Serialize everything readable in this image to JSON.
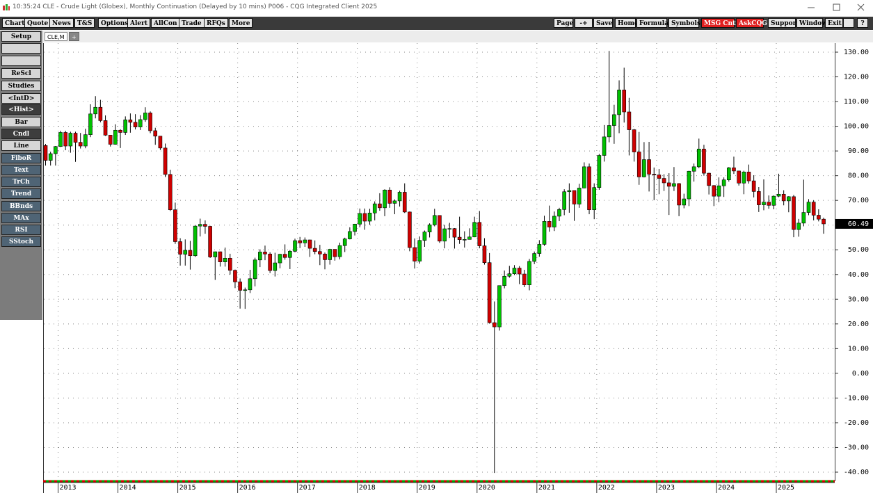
{
  "window": {
    "title": "10:35:24  CLE - Crude Light (Globex), Monthly Continuation (Delayed by 10 mins)  P006 - CQG Integrated Client 2025"
  },
  "toolbar": {
    "left": [
      "Chart",
      "Quote",
      "News",
      "T&S",
      "Options",
      "Alert",
      "AllCon",
      "Trade",
      "RFQs",
      "More"
    ],
    "right": [
      "Page",
      "-+",
      "Save",
      "Home",
      "Formula",
      "Symbols",
      "MSG Cntr",
      "AskCQG",
      "Support",
      "Window",
      "Exit",
      "?"
    ]
  },
  "sidebar": {
    "buttons": [
      "Setup",
      "ReScl",
      "Studies",
      "<IntD>",
      "<Hist>",
      "Bar",
      "Cndl",
      "Line",
      "FiboR",
      "Text",
      "TrCh",
      "Trend",
      "BBnds",
      "MAx",
      "RSI",
      "SStoch"
    ]
  },
  "tab": {
    "label": "CLE,M"
  },
  "chart_data": {
    "type": "candlestick",
    "up_color": "#00c000",
    "down_color": "#d00000",
    "grid": true,
    "ylim": [
      -42.5,
      133.5
    ],
    "yticks": [
      {
        "value": 130,
        "label": "130.00"
      },
      {
        "value": 120,
        "label": "120.00"
      },
      {
        "value": 110,
        "label": "110.00"
      },
      {
        "value": 100,
        "label": "100.00"
      },
      {
        "value": 90,
        "label": "90.00"
      },
      {
        "value": 80,
        "label": "80.00"
      },
      {
        "value": 70,
        "label": "70.00"
      },
      {
        "value": 60,
        "label": "60.00"
      },
      {
        "value": 50,
        "label": "50.00"
      },
      {
        "value": 40,
        "label": "40.00"
      },
      {
        "value": 30,
        "label": "30.00"
      },
      {
        "value": 20,
        "label": "20.00"
      },
      {
        "value": 10,
        "label": "10.00"
      },
      {
        "value": 0,
        "label": "0.00"
      },
      {
        "value": -10,
        "label": "-10.00"
      },
      {
        "value": -20,
        "label": "-20.00"
      },
      {
        "value": -30,
        "label": "-30.00"
      },
      {
        "value": -40,
        "label": "-40.00"
      }
    ],
    "categories": [
      null,
      null,
      null,
      "2013",
      null,
      null,
      null,
      null,
      null,
      null,
      null,
      null,
      null,
      null,
      null,
      "2014",
      null,
      null,
      null,
      null,
      null,
      null,
      null,
      null,
      null,
      null,
      null,
      "2015",
      null,
      null,
      null,
      null,
      null,
      null,
      null,
      null,
      null,
      null,
      null,
      "2016",
      null,
      null,
      null,
      null,
      null,
      null,
      null,
      null,
      null,
      null,
      null,
      "2017",
      null,
      null,
      null,
      null,
      null,
      null,
      null,
      null,
      null,
      null,
      null,
      "2018",
      null,
      null,
      null,
      null,
      null,
      null,
      null,
      null,
      null,
      null,
      null,
      "2019",
      null,
      null,
      null,
      null,
      null,
      null,
      null,
      null,
      null,
      null,
      null,
      "2020",
      null,
      null,
      null,
      null,
      null,
      null,
      null,
      null,
      null,
      null,
      null,
      "2021",
      null,
      null,
      null,
      null,
      null,
      null,
      null,
      null,
      null,
      null,
      null,
      "2022",
      null,
      null,
      null,
      null,
      null,
      null,
      null,
      null,
      null,
      null,
      null,
      "2023",
      null,
      null,
      null,
      null,
      null,
      null,
      null,
      null,
      null,
      null,
      null,
      "2024",
      null,
      null,
      null,
      null,
      null,
      null,
      null,
      null,
      null,
      null,
      null,
      "2025",
      null,
      null,
      null,
      null,
      null,
      null,
      null,
      null,
      null
    ],
    "open": [
      92.2,
      86.2,
      88.9,
      91.8,
      97.5,
      92.0,
      97.2,
      93.5,
      92.0,
      96.6,
      105.0,
      107.7,
      102.3,
      96.4,
      92.7,
      98.4,
      97.5,
      102.6,
      101.6,
      99.7,
      102.7,
      105.4,
      98.2,
      96.0,
      91.2,
      80.5,
      66.2,
      53.3,
      48.2,
      49.8,
      47.6,
      59.6,
      60.3,
      59.5,
      47.1,
      49.2,
      45.1,
      46.6,
      41.7,
      37.0,
      33.6,
      33.8,
      38.3,
      45.9,
      49.1,
      48.3,
      41.6,
      44.7,
      48.2,
      46.9,
      49.4,
      53.7,
      52.8,
      54.0,
      50.6,
      49.3,
      48.3,
      46.0,
      50.2,
      47.2,
      51.7,
      54.4,
      57.4,
      60.4,
      64.7,
      61.6,
      64.9,
      68.6,
      67.0,
      74.2,
      68.8,
      69.8,
      73.3,
      65.3,
      50.9,
      45.4,
      53.8,
      57.2,
      60.1,
      63.9,
      53.5,
      58.5,
      58.6,
      55.1,
      54.1,
      54.2,
      55.2,
      61.1,
      51.6,
      44.8,
      20.5,
      18.8,
      35.5,
      39.3,
      40.3,
      42.6,
      40.2,
      35.8,
      45.3,
      48.5,
      52.2,
      61.5,
      59.2,
      63.6,
      66.3,
      73.5,
      74.0,
      68.5,
      75.0,
      83.6,
      66.2,
      75.2,
      88.2,
      95.7,
      100.3,
      104.7,
      114.7,
      105.8,
      98.6,
      89.6,
      79.5,
      86.5,
      80.6,
      80.3,
      78.9,
      77.1,
      75.7,
      76.8,
      68.1,
      70.6,
      81.8,
      83.6,
      90.8,
      81.0,
      76.0,
      71.7,
      75.9,
      78.3,
      83.2,
      81.9,
      77.0,
      81.5,
      77.9,
      73.6,
      68.2,
      69.3,
      68.0,
      71.7,
      72.5,
      69.8,
      71.5,
      58.2,
      60.8,
      65.1,
      69.3,
      64.0,
      62.4
    ],
    "high": [
      92.8,
      89.7,
      92.0,
      98.2,
      98.2,
      97.8,
      97.8,
      97.3,
      99.0,
      108.9,
      112.2,
      110.7,
      104.4,
      96.5,
      100.8,
      98.8,
      104.0,
      105.2,
      104.9,
      104.5,
      107.7,
      106.0,
      99.4,
      96.0,
      93.0,
      82.4,
      69.1,
      54.7,
      54.2,
      53.6,
      59.9,
      62.6,
      61.9,
      59.7,
      49.3,
      49.3,
      50.9,
      48.4,
      42.0,
      38.4,
      34.7,
      41.9,
      46.8,
      50.2,
      51.7,
      49.0,
      48.8,
      48.4,
      52.2,
      49.9,
      54.5,
      55.2,
      55.0,
      54.1,
      53.8,
      52.0,
      48.9,
      50.4,
      50.2,
      52.9,
      54.9,
      59.1,
      60.5,
      66.7,
      66.7,
      66.6,
      69.6,
      72.9,
      74.5,
      75.3,
      70.4,
      73.9,
      76.9,
      65.5,
      54.6,
      55.4,
      57.8,
      60.7,
      66.6,
      64.0,
      60.1,
      60.9,
      58.8,
      63.4,
      57.5,
      58.7,
      63.4,
      65.7,
      54.7,
      48.7,
      29.1,
      35.5,
      41.6,
      43.5,
      43.8,
      43.4,
      41.9,
      46.3,
      49.3,
      53.9,
      63.8,
      67.9,
      65.5,
      67.0,
      74.5,
      76.9,
      74.0,
      76.7,
      85.4,
      84.9,
      76.9,
      88.8,
      100.5,
      130.5,
      108.7,
      118.6,
      123.7,
      111.5,
      98.9,
      97.7,
      93.6,
      93.7,
      83.3,
      82.7,
      80.6,
      81.0,
      83.5,
      77.0,
      72.7,
      82.0,
      84.9,
      95.0,
      92.5,
      81.2,
      76.2,
      79.3,
      79.3,
      83.5,
      87.7,
      82.0,
      82.0,
      84.5,
      80.2,
      75.4,
      78.5,
      72.0,
      72.0,
      80.8,
      74.1,
      71.7,
      72.2,
      62.5,
      78.4,
      70.5,
      70.0,
      66.4,
      63.0
    ],
    "low": [
      84.1,
      84.1,
      84.1,
      91.6,
      90.3,
      89.3,
      85.6,
      91.0,
      91.1,
      95.6,
      103.2,
      101.6,
      96.1,
      91.8,
      92.6,
      91.2,
      96.5,
      97.4,
      98.7,
      98.5,
      101.8,
      97.2,
      92.5,
      90.4,
      79.4,
      65.7,
      52.4,
      43.6,
      43.6,
      42.0,
      47.1,
      55.4,
      56.5,
      46.7,
      37.8,
      43.2,
      43.2,
      40.0,
      34.5,
      26.2,
      26.1,
      32.5,
      35.2,
      43.0,
      45.8,
      40.6,
      39.2,
      42.5,
      46.0,
      42.2,
      49.0,
      50.7,
      51.2,
      47.1,
      48.2,
      43.8,
      42.1,
      44.0,
      45.6,
      46.1,
      49.1,
      54.2,
      55.8,
      59.1,
      58.1,
      60.1,
      61.9,
      65.8,
      63.6,
      67.0,
      64.4,
      67.5,
      64.9,
      49.4,
      42.4,
      44.4,
      51.2,
      55.0,
      59.5,
      52.8,
      50.6,
      54.8,
      50.5,
      52.4,
      50.9,
      54.2,
      55.1,
      50.6,
      44.0,
      20.1,
      -40.3,
      17.3,
      34.4,
      38.7,
      39.8,
      36.1,
      34.9,
      33.6,
      44.2,
      47.2,
      51.6,
      57.3,
      57.6,
      61.6,
      64.0,
      65.0,
      61.7,
      67.0,
      74.9,
      64.4,
      62.4,
      74.3,
      85.7,
      93.5,
      92.9,
      97.2,
      101.5,
      88.2,
      85.7,
      76.3,
      79.3,
      73.6,
      70.1,
      72.5,
      73.8,
      64.1,
      73.8,
      63.6,
      66.8,
      67.7,
      77.6,
      83.0,
      80.0,
      72.4,
      67.7,
      69.3,
      71.4,
      77.6,
      80.7,
      76.0,
      72.5,
      76.8,
      71.2,
      65.3,
      66.0,
      66.6,
      66.4,
      71.3,
      68.0,
      65.2,
      55.1,
      55.3,
      59.5,
      64.0,
      61.9,
      61.5,
      56.5
    ],
    "close": [
      86.2,
      88.9,
      91.8,
      97.5,
      92.0,
      97.2,
      93.5,
      92.0,
      96.6,
      105.0,
      107.7,
      102.3,
      96.4,
      92.7,
      98.4,
      97.5,
      102.6,
      101.6,
      99.7,
      102.7,
      105.4,
      98.2,
      96.0,
      91.2,
      80.5,
      66.2,
      53.3,
      48.2,
      49.8,
      47.6,
      59.6,
      60.3,
      59.5,
      47.1,
      49.2,
      45.1,
      46.6,
      41.7,
      37.0,
      33.6,
      33.8,
      38.3,
      45.9,
      49.1,
      48.3,
      41.6,
      44.7,
      48.2,
      46.9,
      49.4,
      53.7,
      52.8,
      54.0,
      50.6,
      49.3,
      48.3,
      46.0,
      50.2,
      47.2,
      51.7,
      54.4,
      57.4,
      60.4,
      64.7,
      61.6,
      64.9,
      68.6,
      67.0,
      74.2,
      68.8,
      69.8,
      73.3,
      65.3,
      50.9,
      45.4,
      53.8,
      57.2,
      60.1,
      63.9,
      53.5,
      58.5,
      58.6,
      55.1,
      54.1,
      54.2,
      55.2,
      61.1,
      51.6,
      44.8,
      20.5,
      18.8,
      35.5,
      39.3,
      40.3,
      42.6,
      40.2,
      35.8,
      45.3,
      48.5,
      52.2,
      61.5,
      59.2,
      63.6,
      66.3,
      73.5,
      74.0,
      68.5,
      75.0,
      83.6,
      66.2,
      75.2,
      88.2,
      95.7,
      100.3,
      104.7,
      114.7,
      105.8,
      98.6,
      89.6,
      79.5,
      86.5,
      80.6,
      80.3,
      78.9,
      77.1,
      75.7,
      76.8,
      68.1,
      70.6,
      81.8,
      83.6,
      90.8,
      81.0,
      76.0,
      71.7,
      75.9,
      78.3,
      83.2,
      81.9,
      77.0,
      81.5,
      77.9,
      73.6,
      68.2,
      69.3,
      68.0,
      71.7,
      72.5,
      69.8,
      71.5,
      58.2,
      60.8,
      65.1,
      69.3,
      64.0,
      62.4,
      60.49
    ]
  }
}
